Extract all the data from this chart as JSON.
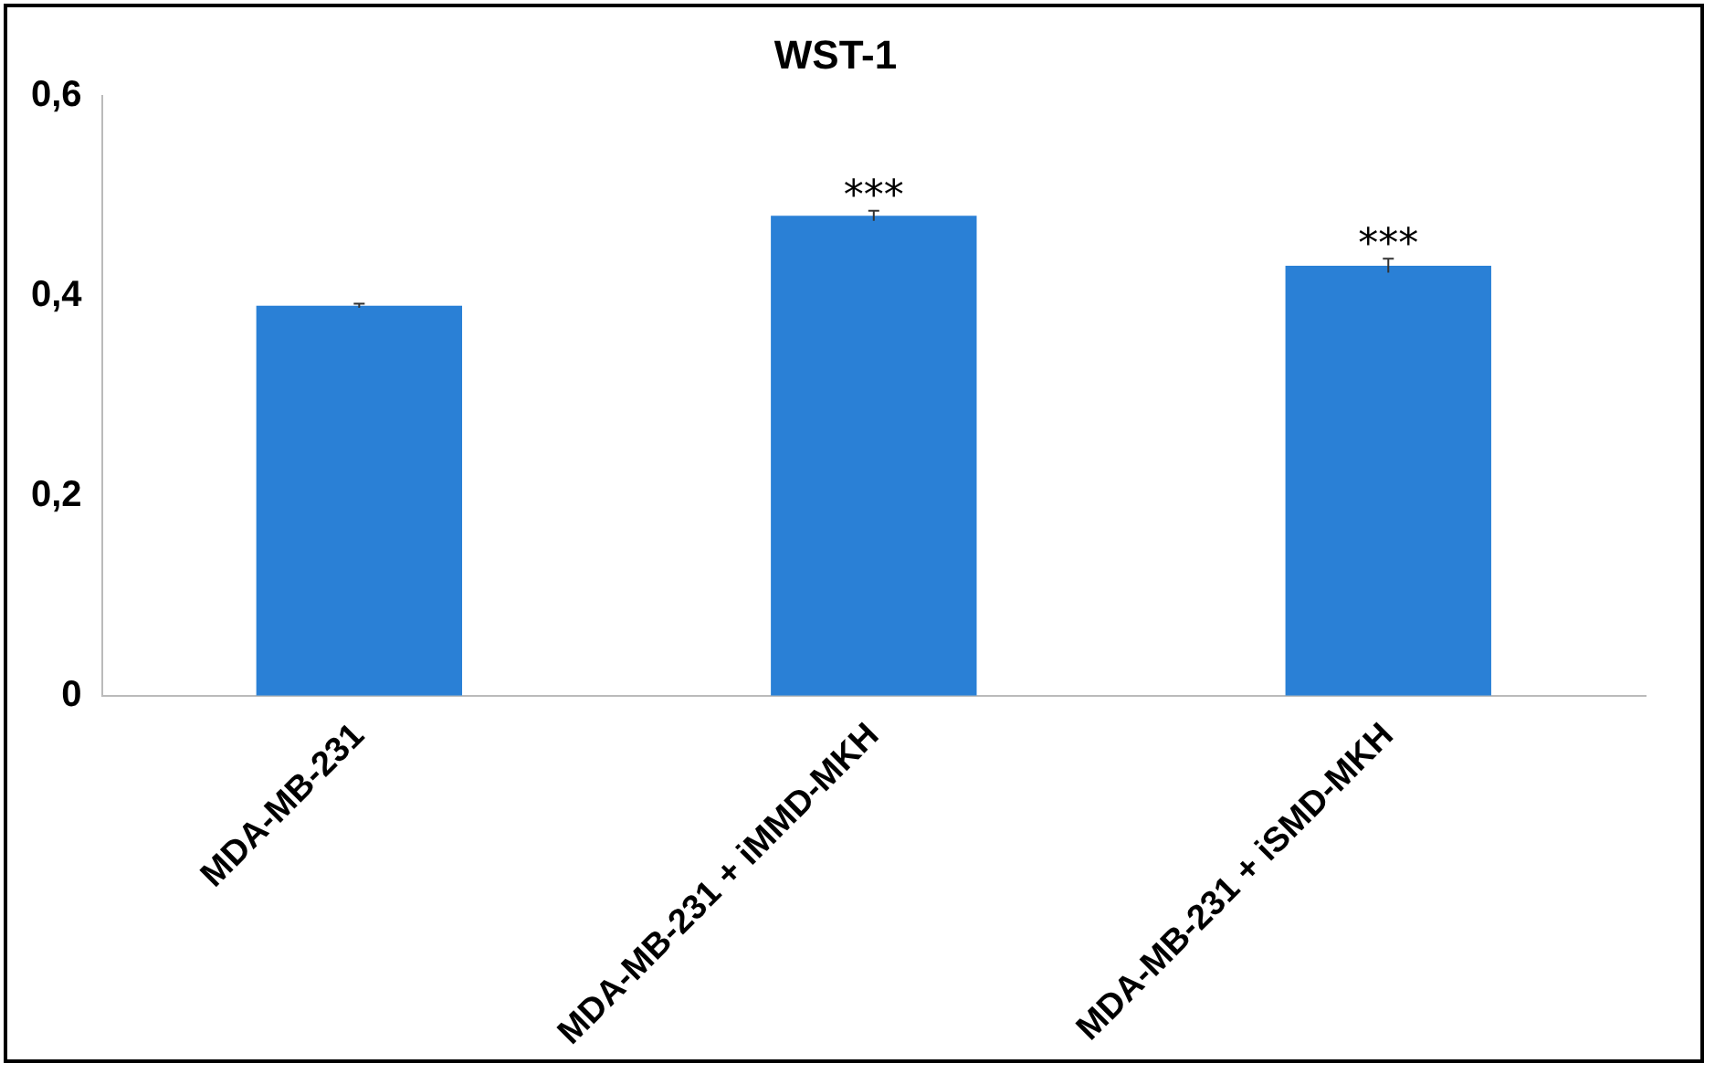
{
  "chart_data": {
    "type": "bar",
    "title": "WST-1",
    "categories": [
      "MDA-MB-231",
      "MDA-MB-231 + iMMD-MKH",
      "MDA-MB-231 + iSMD-MKH"
    ],
    "values": [
      0.39,
      0.48,
      0.43
    ],
    "errors": [
      0.002,
      0.005,
      0.007
    ],
    "color": "#2a80d6",
    "ylim": [
      0,
      0.6
    ],
    "yticks": [
      {
        "value": 0,
        "label": "0"
      },
      {
        "value": 0.2,
        "label": "0,2"
      },
      {
        "value": 0.4,
        "label": "0,4"
      },
      {
        "value": 0.6,
        "label": "0,6"
      }
    ],
    "grid": false,
    "legend": false,
    "annotations": [
      {
        "text": "***",
        "x": "MDA-MB-231 + iMMD-MKH",
        "y": 0.485
      },
      {
        "text": "***",
        "x": "MDA-MB-231 + iSMD-MKH",
        "y": 0.437
      }
    ]
  }
}
